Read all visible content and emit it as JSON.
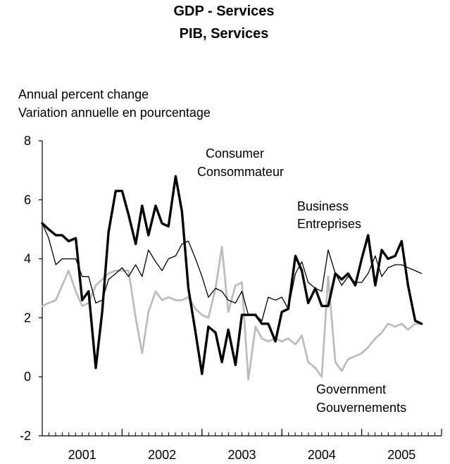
{
  "chart_data": {
    "type": "line",
    "title": "GDP - Services",
    "subtitle": "PIB, Services",
    "ylabel": "Annual percent change",
    "ylabel_fr": "Variation annuelle en pourcentage",
    "ylim": [
      -2,
      8
    ],
    "yticks": [
      "8",
      "6",
      "4",
      "2",
      "0",
      "-2"
    ],
    "xlim": [
      2000.5,
      2005.5
    ],
    "xticks": [
      {
        "label": "2001",
        "pos": 2001
      },
      {
        "label": "2002",
        "pos": 2002
      },
      {
        "label": "2003",
        "pos": 2003
      },
      {
        "label": "2004",
        "pos": 2004
      },
      {
        "label": "2005",
        "pos": 2005
      }
    ],
    "grid": false,
    "annotations": [
      {
        "lines": [
          "Consumer",
          "Consommateur"
        ]
      },
      {
        "lines": [
          "Business",
          "Entreprises"
        ]
      },
      {
        "lines": [
          "Government",
          "Gouvernements"
        ]
      }
    ],
    "series": [
      {
        "name": "Consumer",
        "color": "#000000",
        "weight": "thick",
        "x": [
          2000.5,
          2000.58,
          2000.67,
          2000.75,
          2000.83,
          2000.92,
          2001.0,
          2001.08,
          2001.17,
          2001.25,
          2001.33,
          2001.42,
          2001.5,
          2001.58,
          2001.67,
          2001.75,
          2001.83,
          2001.92,
          2002.0,
          2002.08,
          2002.17,
          2002.25,
          2002.33,
          2002.42,
          2002.5,
          2002.58,
          2002.67,
          2002.75,
          2002.83,
          2002.92,
          2003.0,
          2003.08,
          2003.17,
          2003.25,
          2003.33,
          2003.42,
          2003.5,
          2003.58,
          2003.67,
          2003.75,
          2003.83,
          2003.92,
          2004.0,
          2004.08,
          2004.17,
          2004.25,
          2004.33,
          2004.42,
          2004.5,
          2004.58,
          2004.67,
          2004.75,
          2004.83,
          2004.92,
          2005.0,
          2005.08,
          2005.17,
          2005.25
        ],
        "y": [
          5.2,
          5.0,
          4.8,
          4.8,
          4.6,
          4.7,
          2.6,
          2.9,
          0.3,
          2.2,
          4.9,
          6.3,
          6.3,
          5.5,
          4.5,
          5.8,
          4.8,
          5.8,
          5.2,
          5.1,
          6.8,
          5.6,
          3.0,
          1.5,
          0.1,
          1.7,
          1.5,
          0.5,
          1.6,
          0.4,
          2.1,
          2.1,
          2.1,
          1.8,
          1.8,
          1.2,
          2.2,
          2.3,
          4.1,
          3.6,
          2.5,
          3.0,
          2.4,
          2.4,
          3.5,
          3.3,
          3.5,
          3.1,
          4.0,
          4.8,
          3.1,
          4.3,
          4.0,
          4.1,
          4.6,
          3.1,
          1.9,
          1.8
        ]
      },
      {
        "name": "Business",
        "color": "#000000",
        "weight": "thin",
        "x": [
          2000.5,
          2000.58,
          2000.67,
          2000.75,
          2000.83,
          2000.92,
          2001.0,
          2001.08,
          2001.17,
          2001.25,
          2001.33,
          2001.42,
          2001.5,
          2001.58,
          2001.67,
          2001.75,
          2001.83,
          2001.92,
          2002.0,
          2002.08,
          2002.17,
          2002.25,
          2002.33,
          2002.42,
          2002.5,
          2002.58,
          2002.67,
          2002.75,
          2002.83,
          2002.92,
          2003.0,
          2003.08,
          2003.17,
          2003.25,
          2003.33,
          2003.42,
          2003.5,
          2003.58,
          2003.67,
          2003.75,
          2003.83,
          2003.92,
          2004.0,
          2004.08,
          2004.17,
          2004.25,
          2004.33,
          2004.42,
          2004.5,
          2004.58,
          2004.67,
          2004.75,
          2004.83,
          2004.92,
          2005.0,
          2005.08,
          2005.17,
          2005.25
        ],
        "y": [
          5.2,
          4.7,
          3.8,
          4.0,
          4.0,
          4.0,
          3.4,
          3.4,
          2.5,
          2.6,
          3.3,
          3.5,
          3.7,
          3.4,
          3.8,
          3.4,
          4.3,
          3.9,
          3.6,
          4.0,
          4.1,
          4.5,
          4.6,
          4.0,
          3.4,
          2.7,
          3.0,
          2.9,
          2.6,
          2.5,
          2.9,
          2.1,
          2.1,
          1.9,
          2.7,
          2.6,
          2.7,
          2.3,
          3.5,
          3.9,
          3.2,
          3.0,
          2.9,
          4.3,
          3.5,
          3.1,
          3.4,
          3.2,
          3.2,
          3.5,
          4.1,
          3.4,
          3.7,
          3.8,
          3.8,
          3.7,
          3.6,
          3.5
        ]
      },
      {
        "name": "Government",
        "color": "#bdbdbd",
        "weight": "medium",
        "x": [
          2000.5,
          2000.58,
          2000.67,
          2000.75,
          2000.83,
          2000.92,
          2001.0,
          2001.08,
          2001.17,
          2001.25,
          2001.33,
          2001.42,
          2001.5,
          2001.58,
          2001.67,
          2001.75,
          2001.83,
          2001.92,
          2002.0,
          2002.08,
          2002.17,
          2002.25,
          2002.33,
          2002.42,
          2002.5,
          2002.58,
          2002.67,
          2002.75,
          2002.83,
          2002.92,
          2003.0,
          2003.08,
          2003.17,
          2003.25,
          2003.33,
          2003.42,
          2003.5,
          2003.58,
          2003.67,
          2003.75,
          2003.83,
          2003.92,
          2004.0,
          2004.08,
          2004.17,
          2004.25,
          2004.33,
          2004.42,
          2004.5,
          2004.58,
          2004.67,
          2004.75,
          2004.83,
          2004.92,
          2005.0,
          2005.08,
          2005.17,
          2005.25
        ],
        "y": [
          2.4,
          2.5,
          2.6,
          3.1,
          3.6,
          2.9,
          2.4,
          2.5,
          3.1,
          3.3,
          3.5,
          3.6,
          3.6,
          3.6,
          2.0,
          0.8,
          2.2,
          2.9,
          2.6,
          2.7,
          2.6,
          2.6,
          2.7,
          2.3,
          2.1,
          2.0,
          3.0,
          4.4,
          2.2,
          3.1,
          3.2,
          -0.1,
          1.7,
          1.3,
          1.2,
          1.3,
          1.2,
          1.3,
          1.1,
          1.4,
          0.5,
          0.3,
          0.0,
          3.4,
          0.5,
          0.2,
          0.6,
          0.7,
          0.8,
          1.0,
          1.3,
          1.5,
          1.8,
          1.7,
          1.8,
          1.6,
          1.8,
          1.8
        ]
      }
    ]
  }
}
